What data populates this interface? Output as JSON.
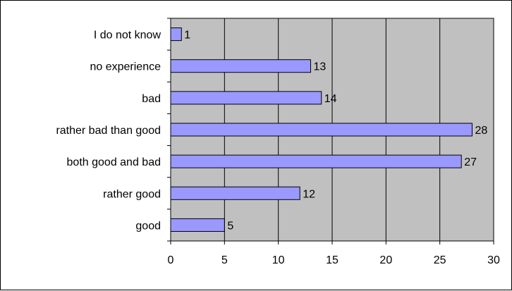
{
  "chart_data": {
    "type": "bar",
    "orientation": "horizontal",
    "title": "",
    "xlabel": "",
    "ylabel": "",
    "categories": [
      "I do not know",
      "no experience",
      "bad",
      "rather bad than good",
      "both good and bad",
      "rather good",
      "good"
    ],
    "values": [
      1,
      13,
      14,
      28,
      27,
      12,
      5
    ],
    "data_labels": [
      "1",
      "13",
      "14",
      "28",
      "27",
      "12",
      "5"
    ],
    "xlim": [
      0,
      30
    ],
    "x_ticks": [
      "0",
      "5",
      "10",
      "15",
      "20",
      "25",
      "30"
    ],
    "grid": "vertical",
    "legend": "none",
    "colors": {
      "plot_background": "#c0c0c0",
      "bar_fill": "#9999ff",
      "bar_stroke": "#000000",
      "grid": "#000000"
    }
  }
}
